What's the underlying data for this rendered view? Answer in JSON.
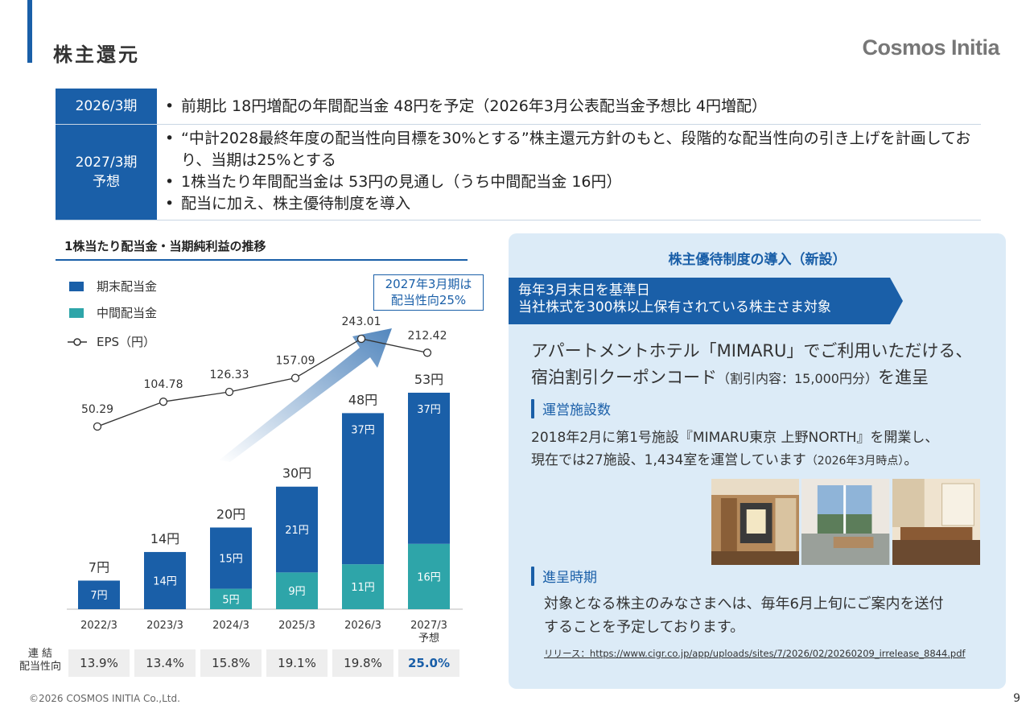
{
  "header": {
    "title": "株主還元",
    "logo": "Cosmos Initia"
  },
  "summary": {
    "row1": {
      "label": "2026/3期",
      "bullets": [
        "前期比 18円増配の年間配当金 48円を予定（2026年3月公表配当金予想比 4円増配）"
      ]
    },
    "row2": {
      "label_line1": "2027/3期",
      "label_line2": "予想",
      "bullets": [
        "“中計2028最終年度の配当性向目標を30%とする”株主還元方針のもと、段階的な配当性向の引き上げを計画しており、当期は25%とする",
        "1株当たり年間配当金は 53円の見通し（うち中間配当金 16円）",
        "配当に加え、株主優待制度を導入"
      ]
    }
  },
  "chart_data": {
    "type": "bar",
    "title": "1株当たり配当金・当期純利益の推移",
    "categories": [
      "2022/3",
      "2023/3",
      "2024/3",
      "2025/3",
      "2026/3",
      "2027/3"
    ],
    "category_sublabels": [
      "",
      "",
      "",
      "",
      "",
      "予想"
    ],
    "stacked": true,
    "series": [
      {
        "name": "中間配当金",
        "color": "#2ea5a9",
        "values": [
          0,
          0,
          5,
          9,
          11,
          16
        ],
        "labels": [
          "",
          "",
          "5円",
          "9円",
          "11円",
          "16円"
        ]
      },
      {
        "name": "期末配当金",
        "color": "#1a5fa8",
        "values": [
          7,
          14,
          15,
          21,
          37,
          37
        ],
        "labels": [
          "7円",
          "14円",
          "15円",
          "21円",
          "37円",
          "37円"
        ]
      }
    ],
    "totals": [
      7,
      14,
      20,
      30,
      48,
      53
    ],
    "total_labels": [
      "7円",
      "14円",
      "20円",
      "30円",
      "48円",
      "53円"
    ],
    "line": {
      "name": "EPS（円）",
      "values": [
        50.29,
        104.78,
        126.33,
        157.09,
        243.01,
        212.42
      ],
      "labels": [
        "50.29",
        "104.78",
        "126.33",
        "157.09",
        "243.01",
        "212.42"
      ]
    },
    "legend": [
      "期末配当金",
      "中間配当金",
      "EPS（円）"
    ],
    "legend_position": "top-left",
    "annotation": {
      "line1": "2027年3月期は",
      "line2": "配当性向25%"
    },
    "payout_label_line1": "連 結",
    "payout_label_line2": "配当性向",
    "payout_ratio": [
      "13.9%",
      "13.4%",
      "15.8%",
      "19.1%",
      "19.8%",
      "25.0%"
    ]
  },
  "panel": {
    "title": "株主優待制度の導入（新設）",
    "ribbon_line1": "毎年3月末日を基準日",
    "ribbon_line2": "当社株式を300株以上保有されている株主さま対象",
    "lead_line1": "アパートメントホテル「MIMARU」でご利用いただける、",
    "lead_line2_main": "宿泊割引クーポンコード",
    "lead_line2_small": "（割引内容：15,000円分）",
    "lead_line2_end": "を進呈",
    "section1_title": "運営施設数",
    "section1_line1": "2018年2月に第1号施設『MIMARU東京 上野NORTH』を開業し、",
    "section1_line2_main": "現在では27施設、1,434室を運営しています",
    "section1_line2_small": "（2026年3月時点）",
    "section1_line2_end": "。",
    "section2_title": "進呈時期",
    "section2_line1": "対象となる株主のみなさまへは、毎年6月上旬にご案内を送付",
    "section2_line2": "することを予定しております。",
    "release": "リリース：https://www.cigr.co.jp/app/uploads/sites/7/2026/02/20260209_irrelease_8844.pdf"
  },
  "footer": {
    "copyright": "©2026 COSMOS INITIA Co.,Ltd.",
    "page": "9"
  },
  "colors": {
    "primary": "#1a5fa8",
    "teal": "#2ea5a9",
    "panel_bg": "#dcebf7"
  }
}
